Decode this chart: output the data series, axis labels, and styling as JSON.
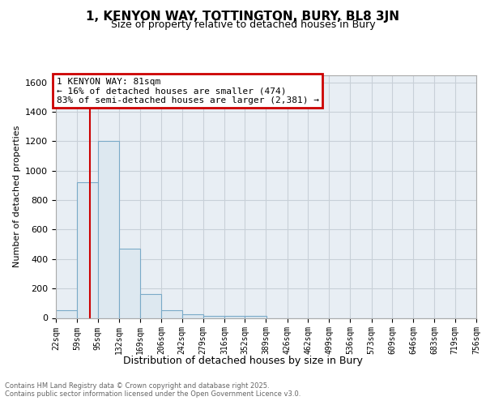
{
  "title": "1, KENYON WAY, TOTTINGTON, BURY, BL8 3JN",
  "subtitle": "Size of property relative to detached houses in Bury",
  "xlabel": "Distribution of detached houses by size in Bury",
  "ylabel": "Number of detached properties",
  "bin_edges": [
    22,
    59,
    95,
    132,
    169,
    206,
    242,
    279,
    316,
    352,
    389,
    426,
    462,
    499,
    536,
    573,
    609,
    646,
    683,
    719,
    756
  ],
  "bar_heights": [
    50,
    920,
    1200,
    470,
    160,
    55,
    25,
    15,
    15,
    15,
    0,
    0,
    0,
    0,
    0,
    0,
    0,
    0,
    0,
    0
  ],
  "bar_color": "#dde8f0",
  "bar_edge_color": "#7aaac8",
  "vline_x": 81,
  "vline_color": "#cc0000",
  "annotation_line1": "1 KENYON WAY: 81sqm",
  "annotation_line2": "← 16% of detached houses are smaller (474)",
  "annotation_line3": "83% of semi-detached houses are larger (2,381) →",
  "annotation_box_edgecolor": "#cc0000",
  "ylim": [
    0,
    1650
  ],
  "yticks": [
    0,
    200,
    400,
    600,
    800,
    1000,
    1200,
    1400,
    1600
  ],
  "bg_color": "#e8eef4",
  "grid_color": "#c8d0d8",
  "footnote1": "Contains HM Land Registry data © Crown copyright and database right 2025.",
  "footnote2": "Contains public sector information licensed under the Open Government Licence v3.0."
}
